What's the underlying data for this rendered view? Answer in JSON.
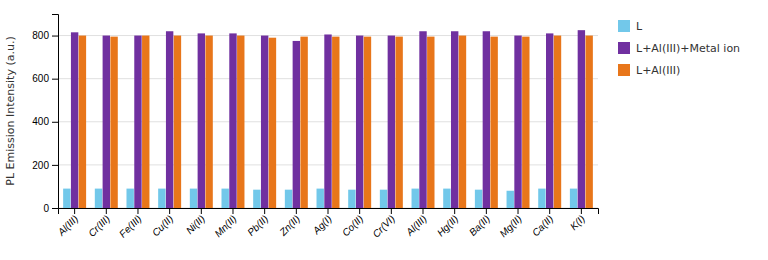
{
  "chart_data": {
    "type": "bar",
    "categories": [
      "Al(III)",
      "Cr(III)",
      "Fe(III)",
      "Cu(II)",
      "Ni(II)",
      "Mn(II)",
      "Pb(II)",
      "Zn(II)",
      "Ag(I)",
      "Co(II)",
      "Cr(VI)",
      "Al(III)",
      "Hg(II)",
      "Ba(II)",
      "Mg(II)",
      "Ca(II)",
      "K(I)"
    ],
    "series": [
      {
        "name": "L",
        "color": "#72C8EA",
        "values": [
          90,
          90,
          90,
          90,
          90,
          90,
          85,
          85,
          90,
          85,
          85,
          90,
          90,
          85,
          80,
          90,
          90
        ]
      },
      {
        "name": "L+Al(III)+Metal ion",
        "color": "#7030A0",
        "values": [
          815,
          800,
          800,
          820,
          810,
          810,
          800,
          775,
          805,
          800,
          800,
          820,
          820,
          820,
          800,
          810,
          825
        ]
      },
      {
        "name": "L+Al(III)",
        "color": "#E8761A",
        "values": [
          800,
          795,
          800,
          800,
          800,
          800,
          790,
          795,
          795,
          795,
          795,
          795,
          800,
          795,
          795,
          800,
          800
        ]
      }
    ],
    "ylabel": "PL Emission Intensity (a.u.)",
    "ylim": [
      0,
      900
    ],
    "yticks": [
      0,
      200,
      400,
      600,
      800
    ],
    "grid": true,
    "legend": "right"
  }
}
